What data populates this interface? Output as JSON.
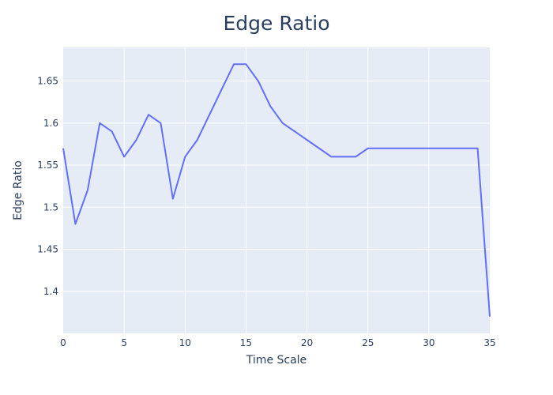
{
  "chart_data": {
    "type": "line",
    "title": "Edge Ratio",
    "xlabel": "Time Scale",
    "ylabel": "Edge Ratio",
    "xlim": [
      0,
      35
    ],
    "ylim": [
      1.35,
      1.69
    ],
    "xticks": [
      0,
      5,
      10,
      15,
      20,
      25,
      30,
      35
    ],
    "yticks": [
      1.4,
      1.45,
      1.5,
      1.55,
      1.6,
      1.65
    ],
    "ytick_labels": [
      "1.4",
      "1.45",
      "1.5",
      "1.55",
      "1.6",
      "1.65"
    ],
    "grid": true,
    "colors": {
      "plot_bg": "#e5ecf6",
      "grid": "#ffffff",
      "line": "#636efa",
      "text": "#2a3f5f"
    },
    "series": [
      {
        "x": [
          0,
          1,
          2,
          3,
          4,
          5,
          6,
          7,
          8,
          9,
          10,
          11,
          12,
          13,
          14,
          15,
          16,
          17,
          18,
          19,
          20,
          21,
          22,
          23,
          24,
          25,
          26,
          27,
          28,
          29,
          30,
          31,
          32,
          33,
          34,
          35
        ],
        "y": [
          1.57,
          1.48,
          1.52,
          1.6,
          1.59,
          1.56,
          1.58,
          1.61,
          1.6,
          1.51,
          1.56,
          1.58,
          1.61,
          1.64,
          1.67,
          1.67,
          1.65,
          1.62,
          1.6,
          1.59,
          1.58,
          1.57,
          1.56,
          1.56,
          1.56,
          1.57,
          1.57,
          1.57,
          1.57,
          1.57,
          1.57,
          1.57,
          1.57,
          1.57,
          1.57,
          1.37
        ]
      }
    ]
  }
}
